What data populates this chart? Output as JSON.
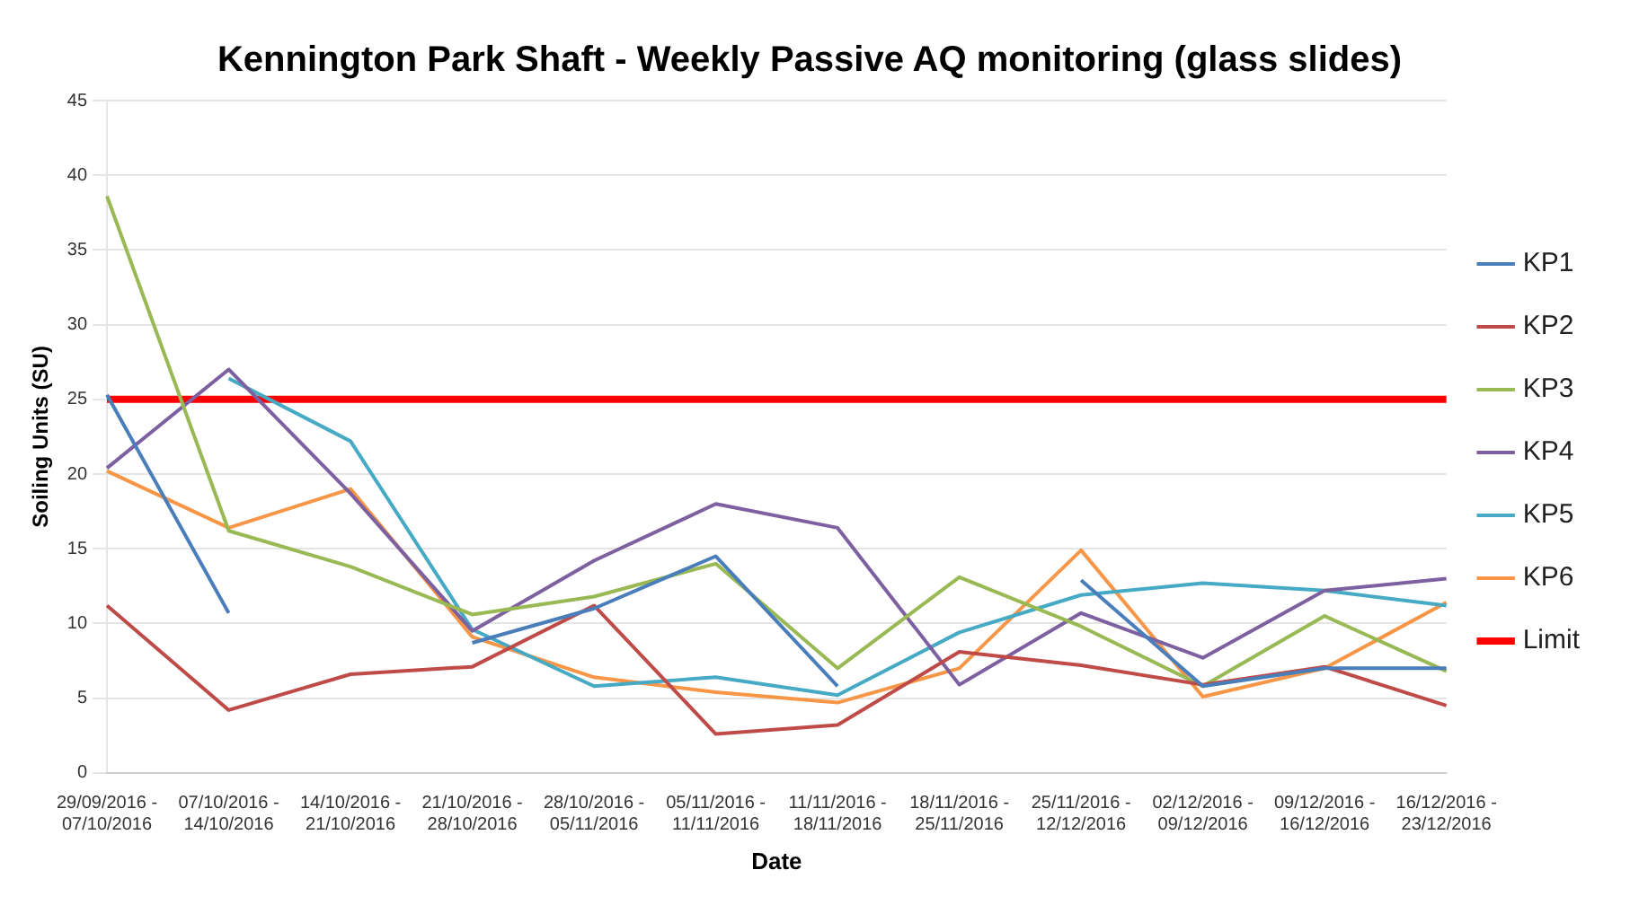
{
  "chart_data": {
    "type": "line",
    "title": "Kennington Park Shaft - Weekly Passive AQ monitoring (glass slides)",
    "xlabel": "Date",
    "ylabel": "Soiling Units (SU)",
    "categories": [
      "29/09/2016 - 07/10/2016",
      "07/10/2016 - 14/10/2016",
      "14/10/2016 - 21/10/2016",
      "21/10/2016 - 28/10/2016",
      "28/10/2016 - 05/11/2016",
      "05/11/2016 - 11/11/2016",
      "11/11/2016 - 18/11/2016",
      "18/11/2016 - 25/11/2016",
      "25/11/2016 - 12/12/2016",
      "02/12/2016 - 09/12/2016",
      "09/12/2016 - 16/12/2016",
      "16/12/2016 - 23/12/2016"
    ],
    "series": [
      {
        "name": "KP1",
        "color": "#4a7ebb",
        "values": [
          25.3,
          10.7,
          null,
          8.7,
          11.0,
          14.5,
          5.8,
          null,
          12.9,
          5.8,
          7.0,
          7.0
        ]
      },
      {
        "name": "KP2",
        "color": "#be4b48",
        "values": [
          11.2,
          4.2,
          6.6,
          7.1,
          11.2,
          2.6,
          3.2,
          8.1,
          7.2,
          5.9,
          7.1,
          4.5
        ]
      },
      {
        "name": "KP3",
        "color": "#98b954",
        "values": [
          38.6,
          16.2,
          13.8,
          10.6,
          11.8,
          14.0,
          7.0,
          13.1,
          9.8,
          5.8,
          10.5,
          6.8
        ]
      },
      {
        "name": "KP4",
        "color": "#7d60a0",
        "values": [
          20.4,
          27.0,
          18.7,
          9.5,
          14.2,
          18.0,
          16.4,
          5.9,
          10.7,
          7.7,
          12.2,
          13.0
        ]
      },
      {
        "name": "KP5",
        "color": "#46aac5",
        "values": [
          null,
          26.4,
          22.2,
          9.6,
          5.8,
          6.4,
          5.2,
          9.4,
          11.9,
          12.7,
          12.2,
          11.2
        ]
      },
      {
        "name": "KP6",
        "color": "#f79646",
        "values": [
          20.2,
          16.4,
          19.0,
          9.1,
          6.4,
          5.4,
          4.7,
          7.0,
          14.9,
          5.1,
          7.0,
          11.4
        ]
      }
    ],
    "ref_lines": [
      {
        "axis": "y",
        "value": 25,
        "label": "Limit",
        "color": "#ff0000"
      }
    ],
    "ylim": [
      0,
      45
    ],
    "yticks": [
      0,
      5,
      10,
      15,
      20,
      25,
      30,
      35,
      40,
      45
    ],
    "grid": "y",
    "legend": "right",
    "marker": "none",
    "line_style": "solid"
  }
}
